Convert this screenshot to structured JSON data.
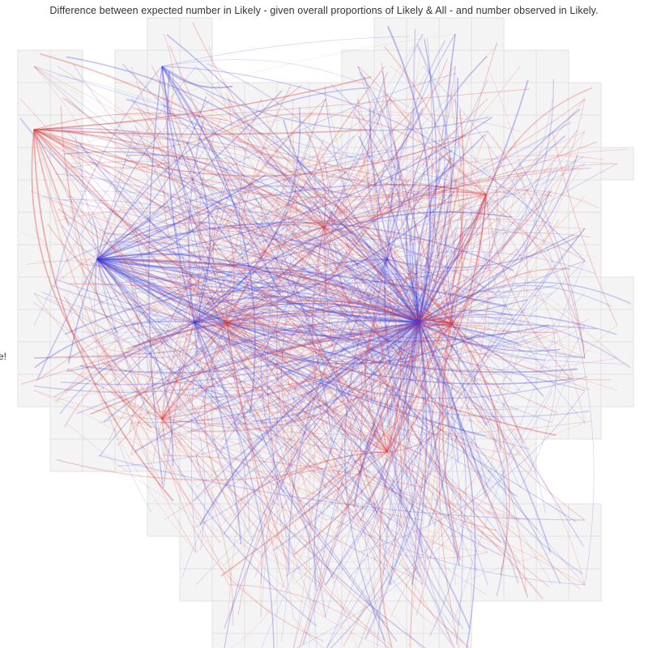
{
  "title": "Difference between expected number in Likely - given overall proportions of Likely & All - and number observed in Likely.",
  "side_label": "e!",
  "colors": {
    "grid_fill": "#f4f4f4",
    "grid_stroke": "#e2e2e2",
    "more_than_expected": "#3a3ae0",
    "fewer_than_expected": "#e04040"
  }
}
